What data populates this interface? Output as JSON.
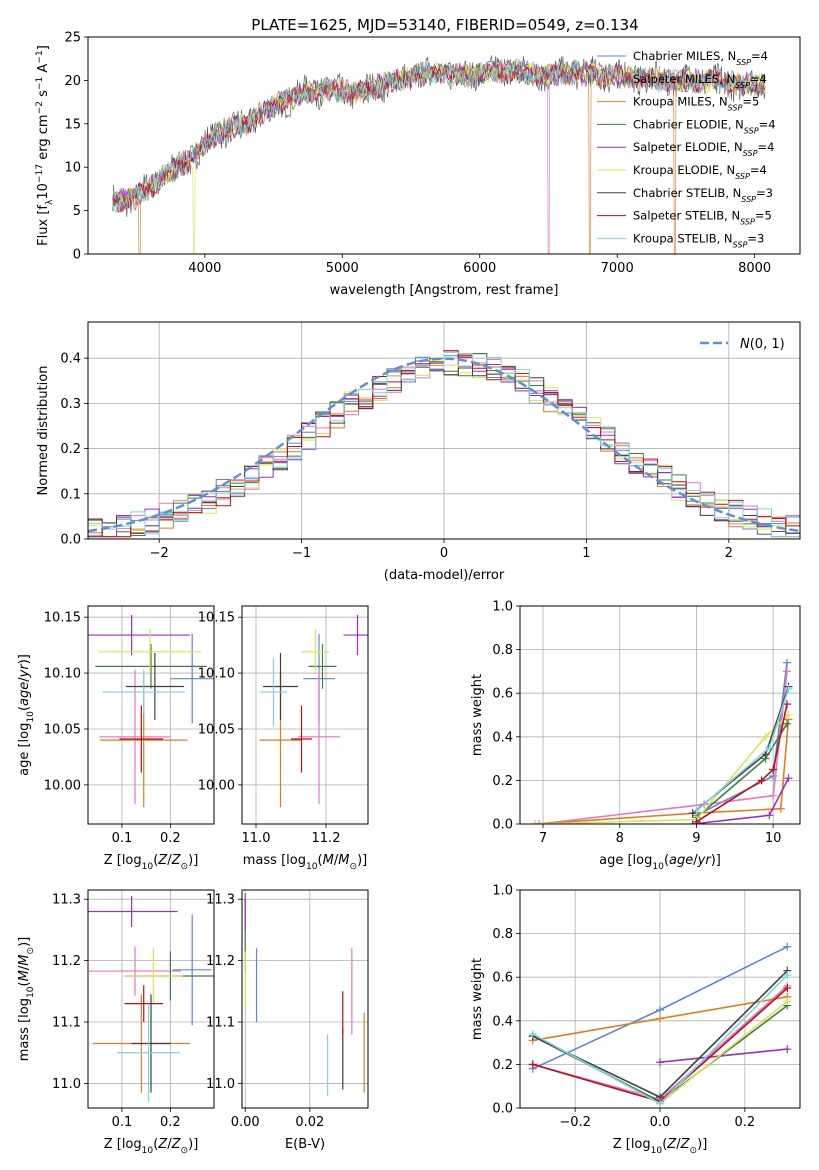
{
  "figure_title": "PLATE=1625, MJD=53140, FIBERID=0549, z=0.134",
  "legend_labels": [
    "Chabrier MILES, N_SSP=4",
    "Salpeter MILES, N_SSP=4",
    "Kroupa MILES, N_SSP=5",
    "Chabrier ELODIE, N_SSP=4",
    "Salpeter ELODIE, N_SSP=4",
    "Kroupa ELODIE, N_SSP=4",
    "Chabrier STELIB, N_SSP=3",
    "Salpeter STELIB, N_SSP=5",
    "Kroupa STELIB, N_SSP=3"
  ],
  "colors": [
    "#5f84d6",
    "#e377c2",
    "#e07b24",
    "#3f7f3f",
    "#9b30c0",
    "#d9e35a",
    "#404040",
    "#b5121b",
    "#7fd3e0"
  ],
  "chart_data": [
    {
      "id": "spectrum",
      "type": "line",
      "title": "PLATE=1625, MJD=53140, FIBERID=0549, z=0.134",
      "xlabel": "wavelength [Angstrom, rest frame]",
      "ylabel": "Flux [f_λ 10^-17 erg cm^-2 s^-1 A^-1]",
      "xlim": [
        3150,
        8330
      ],
      "ylim": [
        0,
        25
      ],
      "xticks": [
        "4000",
        "5000",
        "6000",
        "7000",
        "8000"
      ],
      "yticks": [
        "0",
        "5",
        "10",
        "15",
        "20",
        "25"
      ],
      "grid": false,
      "legend_position": "upper right",
      "series_shape": {
        "x": [
          3330,
          3500,
          3700,
          3900,
          4100,
          4300,
          4500,
          4700,
          4900,
          5100,
          5300,
          5500,
          5700,
          5900,
          6100,
          6300,
          6500,
          6700,
          6900,
          7100,
          7300,
          7500,
          7700,
          7900,
          8080
        ],
        "y": [
          6.0,
          6.5,
          9.0,
          11.0,
          14.0,
          15.0,
          17.0,
          18.5,
          19.0,
          18.5,
          19.5,
          20.5,
          21.0,
          20.5,
          21.0,
          21.0,
          20.5,
          21.0,
          20.5,
          20.5,
          20.0,
          20.0,
          20.0,
          19.5,
          19.5
        ]
      },
      "dropouts": [
        {
          "series": "Kroupa MILES, N_SSP=5",
          "x": [
            3525,
            6800,
            7420
          ]
        },
        {
          "series": "Kroupa ELODIE, N_SSP=4",
          "x": [
            3920
          ]
        },
        {
          "series": "Salpeter MILES, N_SSP=4",
          "x": [
            6500
          ]
        }
      ]
    },
    {
      "id": "residuals",
      "type": "histogram",
      "xlabel": "(data-model)/error",
      "ylabel": "Normed distribution",
      "xlim": [
        -2.5,
        2.5
      ],
      "ylim": [
        0,
        0.48
      ],
      "xticks": [
        "−2",
        "−1",
        "0",
        "1",
        "2"
      ],
      "yticks": [
        "0.0",
        "0.1",
        "0.2",
        "0.3",
        "0.4"
      ],
      "grid": true,
      "bin_width": 0.1,
      "reference_curve": {
        "label": "N(0,1)",
        "style": "dashed",
        "color": "#5f8fd6",
        "mu": 0,
        "sigma": 1
      },
      "legend_position": "upper right"
    },
    {
      "id": "z_vs_age",
      "type": "errorbar",
      "xlabel": "Z [log10(Z/Z⊙)]",
      "ylabel": "age  [log10(age/yr)]",
      "xlim": [
        0.03,
        0.29
      ],
      "ylim": [
        9.965,
        10.16
      ],
      "xticks": [
        "0.1",
        "0.2"
      ],
      "yticks": [
        "10.00",
        "10.05",
        "10.10",
        "10.15"
      ],
      "grid": true,
      "points": [
        {
          "x": 0.245,
          "y": 10.095,
          "xerr": 0.045,
          "yerr": 0.04
        },
        {
          "x": 0.127,
          "y": 10.043,
          "xerr": 0.073,
          "yerr": 0.06
        },
        {
          "x": 0.145,
          "y": 10.04,
          "xerr": 0.09,
          "yerr": 0.06
        },
        {
          "x": 0.16,
          "y": 10.106,
          "xerr": 0.115,
          "yerr": 0.02
        },
        {
          "x": 0.12,
          "y": 10.134,
          "xerr": 0.12,
          "yerr": 0.018
        },
        {
          "x": 0.158,
          "y": 10.119,
          "xerr": 0.105,
          "yerr": 0.02
        },
        {
          "x": 0.168,
          "y": 10.088,
          "xerr": 0.06,
          "yerr": 0.03
        },
        {
          "x": 0.14,
          "y": 10.041,
          "xerr": 0.045,
          "yerr": 0.03
        },
        {
          "x": 0.145,
          "y": 10.083,
          "xerr": 0.085,
          "yerr": 0.02
        }
      ]
    },
    {
      "id": "mass_vs_age",
      "type": "errorbar",
      "xlabel": "mass [log10(M/M⊙)]",
      "xlim": [
        10.96,
        11.32
      ],
      "ylim": [
        9.965,
        10.16
      ],
      "xticks": [
        "11.0",
        "11.2"
      ],
      "yticks": [
        "10.00",
        "10.05",
        "10.10",
        "10.15"
      ],
      "grid": true,
      "points": [
        {
          "x": 11.18,
          "y": 10.095,
          "xerr": 0.045,
          "yerr": 0.04
        },
        {
          "x": 11.18,
          "y": 10.043,
          "xerr": 0.06,
          "yerr": 0.06
        },
        {
          "x": 11.07,
          "y": 10.04,
          "xerr": 0.06,
          "yerr": 0.06
        },
        {
          "x": 11.19,
          "y": 10.106,
          "xerr": 0.04,
          "yerr": 0.02
        },
        {
          "x": 11.29,
          "y": 10.134,
          "xerr": 0.04,
          "yerr": 0.018
        },
        {
          "x": 11.17,
          "y": 10.119,
          "xerr": 0.04,
          "yerr": 0.02
        },
        {
          "x": 11.07,
          "y": 10.088,
          "xerr": 0.05,
          "yerr": 0.03
        },
        {
          "x": 11.13,
          "y": 10.041,
          "xerr": 0.03,
          "yerr": 0.03
        },
        {
          "x": 11.05,
          "y": 10.083,
          "xerr": 0.04,
          "yerr": 0.03
        }
      ]
    },
    {
      "id": "age_vs_weight",
      "type": "line",
      "xlabel": "age  [log10(age/yr)]",
      "ylabel": "mass weight",
      "xlim": [
        6.7,
        10.35
      ],
      "ylim": [
        0,
        1
      ],
      "xticks": [
        "7",
        "8",
        "9",
        "10"
      ],
      "yticks": [
        "0.0",
        "0.2",
        "0.4",
        "0.6",
        "0.8",
        "1.0"
      ],
      "grid": true,
      "series": [
        {
          "x": [
            9.0,
            10.0,
            10.18
          ],
          "y": [
            0.04,
            0.22,
            0.74
          ]
        },
        {
          "x": [
            6.95,
            9.1,
            10.0,
            10.18
          ],
          "y": [
            0.0,
            0.09,
            0.13,
            0.7
          ]
        },
        {
          "x": [
            6.9,
            9.0,
            10.1,
            10.2
          ],
          "y": [
            0.0,
            0.05,
            0.07,
            0.48
          ]
        },
        {
          "x": [
            9.0,
            9.9,
            10.18
          ],
          "y": [
            0.03,
            0.3,
            0.46
          ]
        },
        {
          "x": [
            8.95,
            9.95,
            10.2
          ],
          "y": [
            0.0,
            0.04,
            0.21
          ]
        },
        {
          "x": [
            6.9,
            9.0,
            9.9,
            10.2
          ],
          "y": [
            0.0,
            0.02,
            0.4,
            0.5
          ]
        },
        {
          "x": [
            8.95,
            9.9,
            10.2
          ],
          "y": [
            0.05,
            0.32,
            0.63
          ]
        },
        {
          "x": [
            9.0,
            9.85,
            10.0,
            10.18
          ],
          "y": [
            0.01,
            0.2,
            0.25,
            0.55
          ]
        },
        {
          "x": [
            9.0,
            9.95,
            10.2
          ],
          "y": [
            0.06,
            0.35,
            0.62
          ]
        }
      ]
    },
    {
      "id": "z_vs_mass",
      "type": "errorbar",
      "xlabel": "Z [log10(Z/Z⊙)]",
      "ylabel": "mass [log10(M/M⊙)]",
      "xlim": [
        0.03,
        0.29
      ],
      "ylim": [
        10.96,
        11.315
      ],
      "xticks": [
        "0.1",
        "0.2"
      ],
      "yticks": [
        "11.0",
        "11.1",
        "11.2",
        "11.3"
      ],
      "grid": true,
      "points": [
        {
          "x": 0.245,
          "y": 11.185,
          "xerr": 0.04,
          "yerr": 0.09
        },
        {
          "x": 0.127,
          "y": 11.183,
          "xerr": 0.095,
          "yerr": 0.04
        },
        {
          "x": 0.14,
          "y": 11.065,
          "xerr": 0.1,
          "yerr": 0.08
        },
        {
          "x": 0.2,
          "y": 11.175,
          "xerr": 0.095,
          "yerr": 0.04
        },
        {
          "x": 0.12,
          "y": 11.28,
          "xerr": 0.095,
          "yerr": 0.025
        },
        {
          "x": 0.165,
          "y": 11.175,
          "xerr": 0.06,
          "yerr": 0.045
        },
        {
          "x": 0.16,
          "y": 11.065,
          "xerr": 0.04,
          "yerr": 0.08
        },
        {
          "x": 0.145,
          "y": 11.13,
          "xerr": 0.04,
          "yerr": 0.03
        },
        {
          "x": 0.155,
          "y": 11.05,
          "xerr": 0.065,
          "yerr": 0.08
        }
      ]
    },
    {
      "id": "ebv_vs_mass",
      "type": "errorbar",
      "xlabel": "E(B-V)",
      "xlim": [
        -0.001,
        0.038
      ],
      "ylim": [
        10.96,
        11.315
      ],
      "xticks": [
        "0.00",
        "0.02"
      ],
      "yticks": [
        "11.0",
        "11.1",
        "11.2",
        "11.3"
      ],
      "grid": true,
      "points": [
        {
          "x": 0.0035,
          "y": 11.16,
          "yerr": 0.06
        },
        {
          "x": 0.033,
          "y": 11.15,
          "yerr": 0.07
        },
        {
          "x": 0.0368,
          "y": 11.05,
          "yerr": 0.065
        },
        {
          "x": 0.0,
          "y": 11.24,
          "yerr": 0.06
        },
        {
          "x": 0.0,
          "y": 11.28,
          "yerr": 0.03
        },
        {
          "x": 0.0,
          "y": 11.17,
          "yerr": 0.045
        },
        {
          "x": 0.0302,
          "y": 11.04,
          "yerr": 0.05
        },
        {
          "x": 0.0302,
          "y": 11.115,
          "yerr": 0.035
        },
        {
          "x": 0.0255,
          "y": 11.03,
          "yerr": 0.05
        }
      ]
    },
    {
      "id": "z_vs_weight",
      "type": "line",
      "xlabel": "Z [log10(Z/Z⊙)]",
      "ylabel": "mass weight",
      "xlim": [
        -0.33,
        0.33
      ],
      "ylim": [
        0,
        1
      ],
      "xticks": [
        "−0.2",
        "0.0",
        "0.2"
      ],
      "yticks": [
        "0.0",
        "0.2",
        "0.4",
        "0.6",
        "0.8",
        "1.0"
      ],
      "grid": true,
      "series": [
        {
          "x": [
            -0.3,
            0.0,
            0.3
          ],
          "y": [
            0.18,
            0.45,
            0.74
          ]
        },
        {
          "x": [
            -0.3,
            0.0,
            0.3
          ],
          "y": [
            0.2,
            0.04,
            0.56
          ]
        },
        {
          "x": [
            -0.3,
            0.0,
            0.3
          ],
          "y": [
            0.31,
            0.41,
            0.51
          ]
        },
        {
          "x": [
            -0.3,
            0.0,
            0.3
          ],
          "y": [
            0.33,
            0.03,
            0.47
          ]
        },
        {
          "x": [
            0.0,
            0.3
          ],
          "y": [
            0.21,
            0.27
          ]
        },
        {
          "x": [
            0.0,
            0.3
          ],
          "y": [
            0.02,
            0.49
          ]
        },
        {
          "x": [
            -0.3,
            0.0,
            0.3
          ],
          "y": [
            0.33,
            0.05,
            0.63
          ]
        },
        {
          "x": [
            -0.3,
            0.0,
            0.3
          ],
          "y": [
            0.2,
            0.03,
            0.55
          ]
        },
        {
          "x": [
            -0.3,
            0.0,
            0.3
          ],
          "y": [
            0.34,
            0.02,
            0.61
          ]
        }
      ]
    }
  ]
}
